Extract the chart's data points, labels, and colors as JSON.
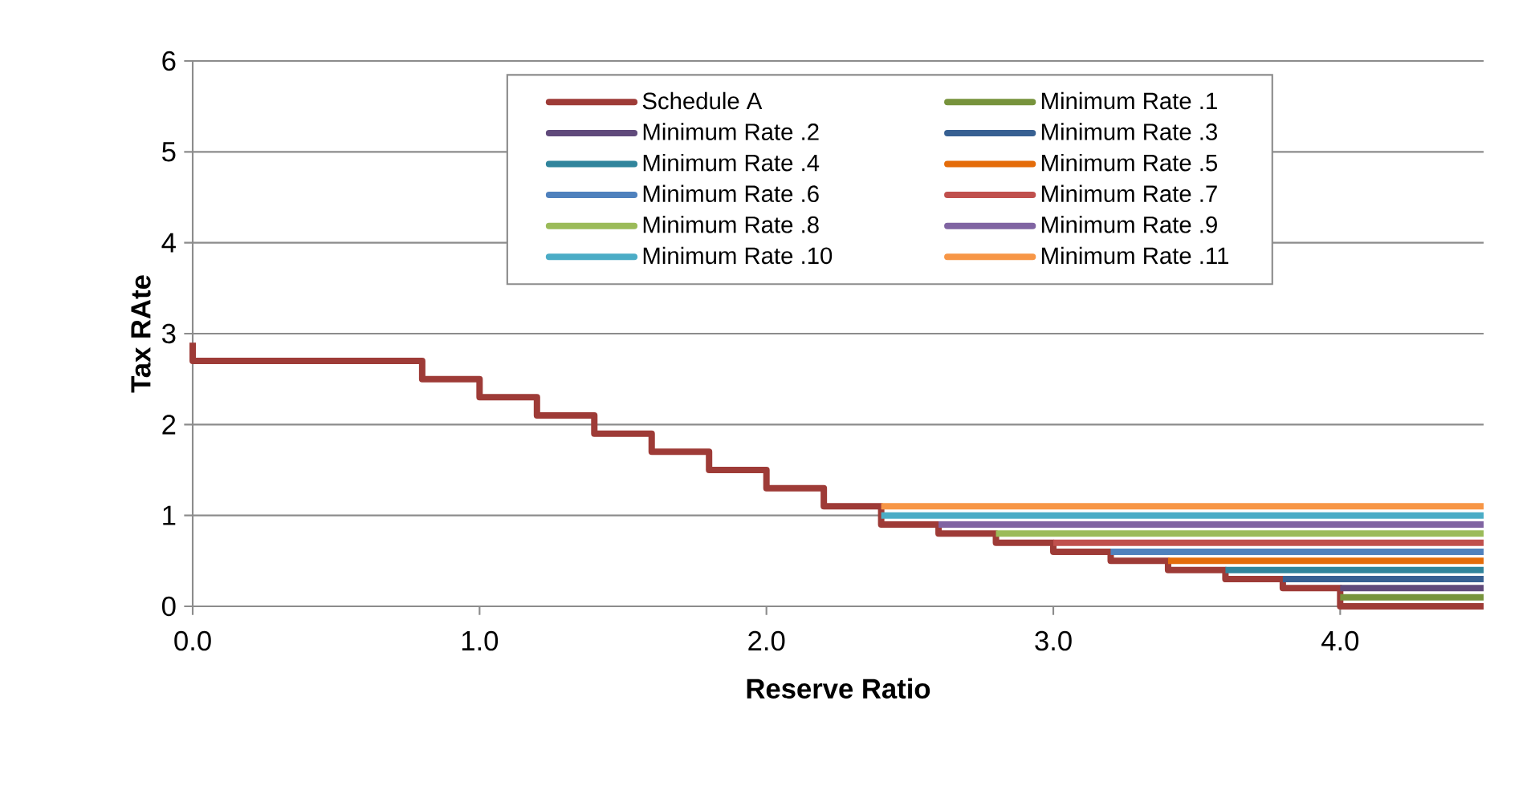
{
  "chart_data": {
    "type": "line",
    "xlabel": "Reserve Ratio",
    "ylabel": "Tax RAte",
    "xlim": [
      0,
      4.5
    ],
    "ylim": [
      0,
      6
    ],
    "xticks": [
      {
        "value": 0,
        "label": "0.0"
      },
      {
        "value": 1,
        "label": "1.0"
      },
      {
        "value": 2,
        "label": "2.0"
      },
      {
        "value": 3,
        "label": "3.0"
      },
      {
        "value": 4,
        "label": "4.0"
      }
    ],
    "yticks": [
      0,
      1,
      2,
      3,
      4,
      5,
      6
    ],
    "grid": "y",
    "legend": "top",
    "series": [
      {
        "name": "Schedule A",
        "type": "step",
        "color": "#9e3b37",
        "x": [
          0,
          0,
          0.8,
          1.0,
          1.2,
          1.4,
          1.6,
          1.8,
          2.0,
          2.2,
          2.4,
          2.6,
          2.8,
          3.0,
          3.2,
          3.4,
          3.6,
          3.8,
          4.0,
          4.5
        ],
        "values": [
          2.9,
          2.7,
          2.5,
          2.3,
          2.1,
          1.9,
          1.7,
          1.5,
          1.3,
          1.1,
          0.9,
          0.8,
          0.7,
          0.6,
          0.5,
          0.4,
          0.3,
          0.2,
          0,
          0
        ]
      },
      {
        "name": "Minimum Rate .1",
        "color": "#77933c",
        "x": [
          4.0,
          4.5
        ],
        "values": [
          0.1,
          0.1
        ]
      },
      {
        "name": "Minimum Rate .2",
        "color": "#604a7b",
        "x": [
          4.0,
          4.5
        ],
        "values": [
          0.2,
          0.2
        ]
      },
      {
        "name": "Minimum Rate .3",
        "color": "#376092",
        "x": [
          3.8,
          4.5
        ],
        "values": [
          0.3,
          0.3
        ]
      },
      {
        "name": "Minimum Rate .4",
        "color": "#31859c",
        "x": [
          3.6,
          4.5
        ],
        "values": [
          0.4,
          0.4
        ]
      },
      {
        "name": "Minimum Rate .5",
        "color": "#e46c0a",
        "x": [
          3.4,
          4.5
        ],
        "values": [
          0.5,
          0.5
        ]
      },
      {
        "name": "Minimum Rate .6",
        "color": "#4f81bd",
        "x": [
          3.2,
          4.5
        ],
        "values": [
          0.6,
          0.6
        ]
      },
      {
        "name": "Minimum Rate .7",
        "color": "#c0504d",
        "x": [
          3.0,
          4.5
        ],
        "values": [
          0.7,
          0.7
        ]
      },
      {
        "name": "Minimum Rate .8",
        "color": "#9bbb59",
        "x": [
          2.8,
          4.5
        ],
        "values": [
          0.8,
          0.8
        ]
      },
      {
        "name": "Minimum Rate .9",
        "color": "#8064a2",
        "x": [
          2.6,
          4.5
        ],
        "values": [
          0.9,
          0.9
        ]
      },
      {
        "name": "Minimum Rate .10",
        "color": "#4bacc6",
        "x": [
          2.4,
          4.5
        ],
        "values": [
          1.0,
          1.0
        ]
      },
      {
        "name": "Minimum Rate .11",
        "color": "#f79646",
        "x": [
          2.4,
          4.5
        ],
        "values": [
          1.1,
          1.1
        ]
      }
    ]
  }
}
